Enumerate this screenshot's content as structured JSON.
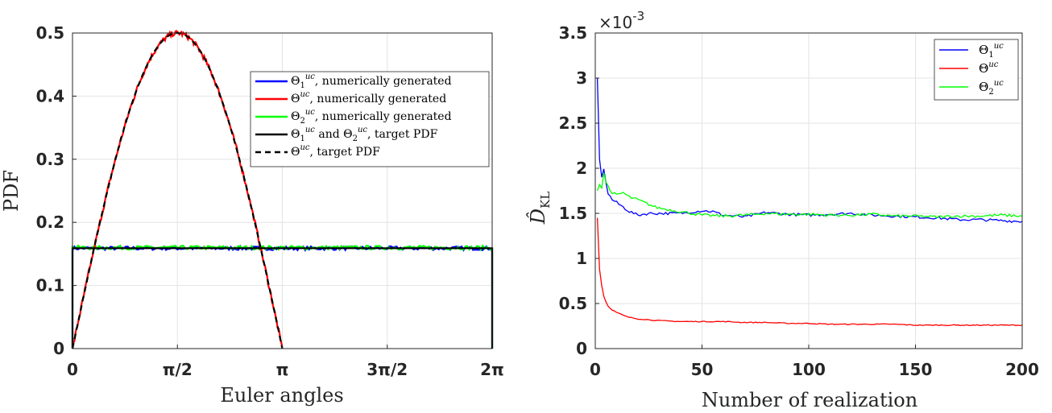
{
  "chart_data": [
    {
      "type": "line",
      "xlabel": "Euler angles",
      "ylabel": "PDF",
      "xlim": [
        0,
        6.2832
      ],
      "ylim": [
        0,
        0.5
      ],
      "x_ticks": [
        {
          "value": 0,
          "label": "0"
        },
        {
          "value": 1.5708,
          "label": "π/2"
        },
        {
          "value": 3.1416,
          "label": "π"
        },
        {
          "value": 4.7124,
          "label": "3π/2"
        },
        {
          "value": 6.2832,
          "label": "2π"
        }
      ],
      "y_ticks": [
        {
          "value": 0,
          "label": "0"
        },
        {
          "value": 0.1,
          "label": "0.1"
        },
        {
          "value": 0.2,
          "label": "0.2"
        },
        {
          "value": 0.3,
          "label": "0.3"
        },
        {
          "value": 0.4,
          "label": "0.4"
        },
        {
          "value": 0.5,
          "label": "0.5"
        }
      ],
      "grid": true,
      "legend_position": "top-right",
      "legend": [
        {
          "sym": "Θ",
          "sub": "1",
          "sup": "uc",
          "text": ", numerically generated",
          "color": "#0000ff",
          "dashed": false
        },
        {
          "sym": "Θ",
          "sub": "",
          "sup": "uc",
          "text": ", numerically generated",
          "color": "#ff0000",
          "dashed": false
        },
        {
          "sym": "Θ",
          "sub": "2",
          "sup": "uc",
          "text": ", numerically generated",
          "color": "#00ff00",
          "dashed": false
        },
        {
          "sym": "Θ",
          "sub": "1",
          "sup": "uc",
          "text": " and Θ",
          "sub2": "2",
          "sup2": "uc",
          "text2": ", target PDF",
          "color": "#000000",
          "dashed": false
        },
        {
          "sym": "Θ",
          "sub": "",
          "sup": "uc",
          "text": ", target PDF",
          "color": "#000000",
          "dashed": true
        }
      ],
      "series": [
        {
          "id": "theta1_num",
          "kind": "uniform_noisy",
          "level": 0.159,
          "x_range": [
            0,
            6.2832
          ],
          "color": "#0000ff"
        },
        {
          "id": "theta2_num",
          "kind": "uniform_noisy",
          "level": 0.16,
          "x_range": [
            0,
            6.2832
          ],
          "color": "#00ff00"
        },
        {
          "id": "theta_num",
          "kind": "half_sine_noisy",
          "amplitude": 0.5,
          "x_range": [
            0,
            3.1416
          ],
          "color": "#ff0000"
        },
        {
          "id": "theta12_target",
          "kind": "uniform",
          "level": 0.159,
          "x_range": [
            0,
            6.2832
          ],
          "color": "#000000"
        },
        {
          "id": "theta_target",
          "kind": "half_sine",
          "amplitude": 0.5,
          "x_range": [
            0,
            3.1416
          ],
          "color": "#000000",
          "dashed": true
        }
      ]
    },
    {
      "type": "line",
      "xlabel": "Number of realization",
      "ylabel": "D̂",
      "ylabel_sub": "KL",
      "exponent_label": "×10",
      "exponent_power": "-3",
      "xlim": [
        0,
        200
      ],
      "ylim": [
        0,
        3.5
      ],
      "x_ticks": [
        {
          "value": 0,
          "label": "0"
        },
        {
          "value": 50,
          "label": "50"
        },
        {
          "value": 100,
          "label": "100"
        },
        {
          "value": 150,
          "label": "150"
        },
        {
          "value": 200,
          "label": "200"
        }
      ],
      "y_ticks": [
        {
          "value": 0,
          "label": "0"
        },
        {
          "value": 0.5,
          "label": "0.5"
        },
        {
          "value": 1,
          "label": "1"
        },
        {
          "value": 1.5,
          "label": "1.5"
        },
        {
          "value": 2,
          "label": "2"
        },
        {
          "value": 2.5,
          "label": "2.5"
        },
        {
          "value": 3,
          "label": "3"
        },
        {
          "value": 3.5,
          "label": "3.5"
        }
      ],
      "grid": true,
      "legend_position": "top-right",
      "legend": [
        {
          "sym": "Θ",
          "sub": "1",
          "sup": "uc",
          "color": "#0000ff"
        },
        {
          "sym": "Θ",
          "sub": "",
          "sup": "uc",
          "color": "#ff0000"
        },
        {
          "sym": "Θ",
          "sub": "2",
          "sup": "uc",
          "color": "#00ff00"
        }
      ],
      "series": [
        {
          "id": "theta1",
          "color": "#0000ff",
          "x": [
            1,
            2,
            3,
            4,
            5,
            6,
            8,
            10,
            13,
            16,
            20,
            25,
            30,
            40,
            50,
            55,
            60,
            70,
            80,
            90,
            100,
            110,
            120,
            130,
            140,
            150,
            160,
            170,
            180,
            190,
            200
          ],
          "y": [
            3.0,
            2.1,
            1.9,
            1.98,
            1.85,
            1.72,
            1.65,
            1.62,
            1.57,
            1.52,
            1.48,
            1.5,
            1.5,
            1.5,
            1.53,
            1.52,
            1.48,
            1.46,
            1.51,
            1.49,
            1.48,
            1.49,
            1.5,
            1.48,
            1.47,
            1.46,
            1.45,
            1.43,
            1.43,
            1.42,
            1.41
          ]
        },
        {
          "id": "theta",
          "color": "#ff0000",
          "x": [
            1,
            2,
            3,
            4,
            5,
            6,
            8,
            10,
            12,
            15,
            20,
            25,
            30,
            40,
            50,
            60,
            70,
            80,
            90,
            100,
            110,
            120,
            130,
            140,
            150,
            160,
            170,
            180,
            190,
            200
          ],
          "y": [
            1.45,
            0.88,
            0.7,
            0.58,
            0.52,
            0.47,
            0.43,
            0.4,
            0.38,
            0.35,
            0.33,
            0.32,
            0.31,
            0.3,
            0.3,
            0.3,
            0.29,
            0.29,
            0.28,
            0.28,
            0.27,
            0.27,
            0.27,
            0.27,
            0.26,
            0.26,
            0.26,
            0.26,
            0.26,
            0.26
          ]
        },
        {
          "id": "theta2",
          "color": "#00ff00",
          "x": [
            1,
            2,
            3,
            4,
            5,
            7,
            10,
            13,
            16,
            20,
            25,
            28,
            32,
            37,
            40,
            45,
            50,
            60,
            70,
            80,
            90,
            100,
            110,
            120,
            130,
            140,
            150,
            160,
            170,
            180,
            190,
            200
          ],
          "y": [
            1.75,
            1.82,
            1.78,
            1.95,
            1.85,
            1.75,
            1.7,
            1.73,
            1.68,
            1.65,
            1.6,
            1.57,
            1.55,
            1.53,
            1.52,
            1.5,
            1.48,
            1.47,
            1.48,
            1.5,
            1.49,
            1.49,
            1.48,
            1.48,
            1.49,
            1.47,
            1.47,
            1.46,
            1.47,
            1.47,
            1.48,
            1.47
          ]
        }
      ]
    }
  ]
}
